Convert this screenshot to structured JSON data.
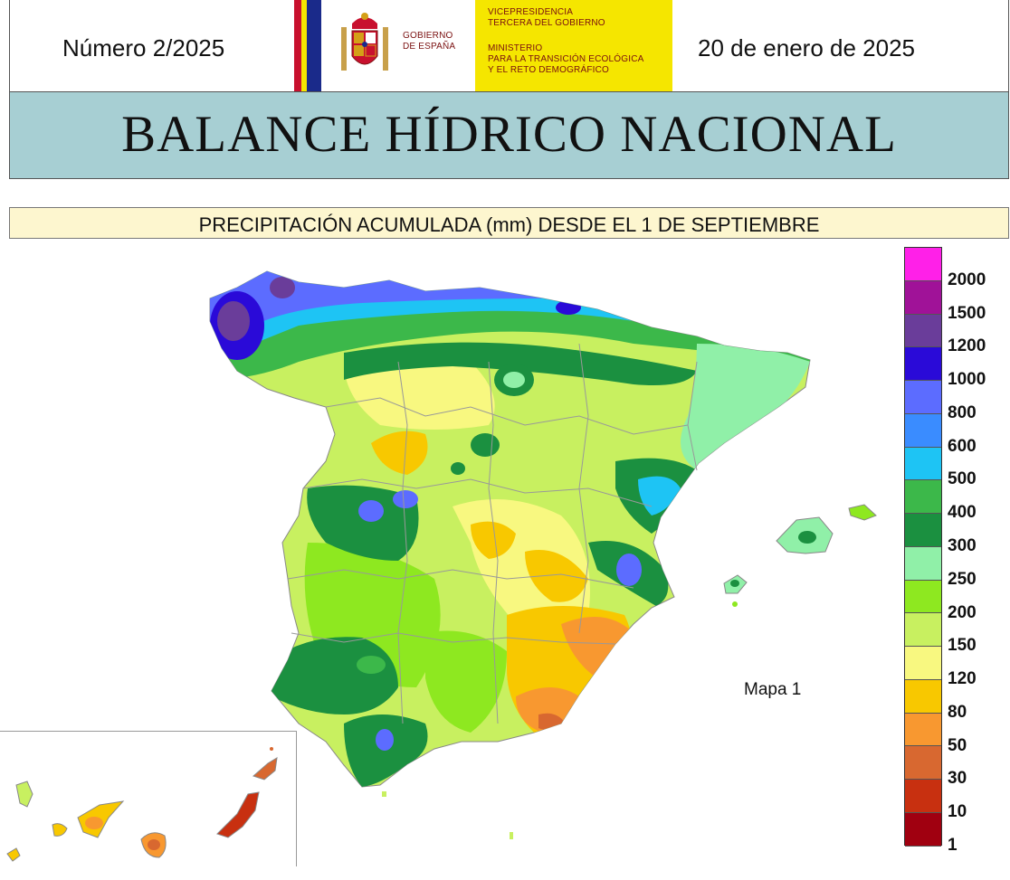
{
  "header": {
    "issue": "Número 2/2025",
    "date": "20 de enero de 2025",
    "gov_label_1": "GOBIERNO",
    "gov_label_2": "DE ESPAÑA",
    "ministry_line_1": "VICEPRESIDENCIA",
    "ministry_line_2": "TERCERA DEL GOBIERNO",
    "ministry_line_3": "MINISTERIO",
    "ministry_line_4": "PARA LA TRANSICIÓN ECOLÓGICA",
    "ministry_line_5": "Y EL RETO DEMOGRÁFICO"
  },
  "title": "BALANCE HÍDRICO NACIONAL",
  "subtitle": "PRECIPITACIÓN ACUMULADA (mm) DESDE EL 1 DE SEPTIEMBRE",
  "map_label": "Mapa 1",
  "colors": {
    "title_band": "#a7cfd3",
    "subtitle_band": "#fdf6cf",
    "gov_yellow": "#f5e600",
    "flag_red": "#c8102e"
  },
  "legend": {
    "unit": "mm",
    "classes": [
      {
        "label": "2000",
        "color": "#ff20e8"
      },
      {
        "label": "1500",
        "color": "#a01298"
      },
      {
        "label": "1200",
        "color": "#6a3d9a"
      },
      {
        "label": "1000",
        "color": "#2a0ad8"
      },
      {
        "label": "800",
        "color": "#5c6cff"
      },
      {
        "label": "600",
        "color": "#3a8cff"
      },
      {
        "label": "500",
        "color": "#1ec4f4"
      },
      {
        "label": "400",
        "color": "#3cb84a"
      },
      {
        "label": "300",
        "color": "#1b9040"
      },
      {
        "label": "250",
        "color": "#90f0a8"
      },
      {
        "label": "200",
        "color": "#8ee820"
      },
      {
        "label": "150",
        "color": "#c8f060"
      },
      {
        "label": "120",
        "color": "#f8f880"
      },
      {
        "label": "80",
        "color": "#f8c800"
      },
      {
        "label": "50",
        "color": "#f89830"
      },
      {
        "label": "30",
        "color": "#d86830"
      },
      {
        "label": "10",
        "color": "#c83010"
      },
      {
        "label": "1",
        "color": "#a00010"
      }
    ]
  }
}
